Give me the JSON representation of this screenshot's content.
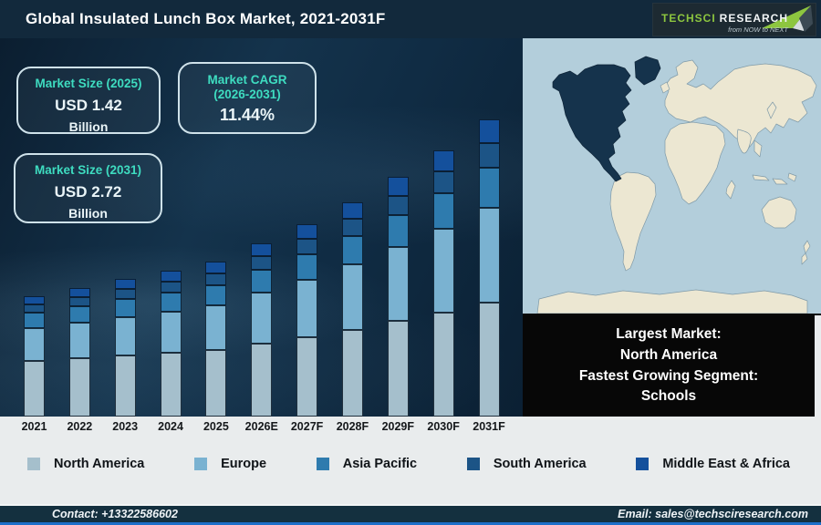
{
  "theme": {
    "accent_teal": "#3edcc0",
    "header_bg": "#12293c",
    "footer_bg": "#14303f",
    "footer_bottom_line": "#1d6fc9"
  },
  "header": {
    "title": "Global Insulated Lunch Box Market, 2021-2031F",
    "logo": {
      "brand_primary": "TechSci",
      "brand_secondary": "Research",
      "tagline": "from NOW to NEXT",
      "arrow_green": "#8dc63f"
    }
  },
  "stats": {
    "market_size_2025": {
      "label": "Market Size (2025)",
      "value": "USD 1.42",
      "unit": "Billion"
    },
    "market_cagr": {
      "label_line1": "Market CAGR",
      "label_line2": "(2026-2031)",
      "value": "11.44%"
    },
    "market_size_2031": {
      "label": "Market Size (2031)",
      "value": "USD 2.72",
      "unit": "Billion"
    }
  },
  "chart_data": {
    "type": "bar",
    "stacked": true,
    "title": "Global Insulated Lunch Box Market, 2021-2031F",
    "unit": "USD Billion",
    "legend_position": "bottom",
    "axes_visible": false,
    "categories": [
      "2021",
      "2022",
      "2023",
      "2024",
      "2025",
      "2026E",
      "2027F",
      "2028F",
      "2029F",
      "2030F",
      "2031F"
    ],
    "totals": [
      1.11,
      1.18,
      1.25,
      1.33,
      1.42,
      1.58,
      1.76,
      1.96,
      2.19,
      2.44,
      2.72
    ],
    "series": [
      {
        "name": "North America",
        "color": "#a5bfcc",
        "values": [
          0.511,
          0.534,
          0.556,
          0.581,
          0.609,
          0.665,
          0.727,
          0.795,
          0.871,
          0.951,
          1.039
        ]
      },
      {
        "name": "Europe",
        "color": "#7ab2d1",
        "values": [
          0.3,
          0.325,
          0.35,
          0.379,
          0.412,
          0.466,
          0.528,
          0.598,
          0.679,
          0.769,
          0.87
        ]
      },
      {
        "name": "Asia Pacific",
        "color": "#2e7bae",
        "values": [
          0.144,
          0.154,
          0.164,
          0.174,
          0.187,
          0.209,
          0.233,
          0.26,
          0.292,
          0.326,
          0.364
        ]
      },
      {
        "name": "South America",
        "color": "#1c5486",
        "values": [
          0.078,
          0.084,
          0.091,
          0.099,
          0.107,
          0.122,
          0.138,
          0.156,
          0.178,
          0.202,
          0.228
        ]
      },
      {
        "name": "Middle East & Africa",
        "color": "#14509c",
        "values": [
          0.078,
          0.084,
          0.09,
          0.097,
          0.105,
          0.119,
          0.134,
          0.151,
          0.171,
          0.193,
          0.218
        ]
      }
    ]
  },
  "map": {
    "highlighted_region": "North America",
    "ocean_color": "#b3cedb",
    "land_color": "#ece7d2",
    "land_outline": "#7f9aa8",
    "highlight_color": "#15334c"
  },
  "callout": {
    "lines": [
      "Largest Market:",
      "North America",
      "Fastest Growing Segment:",
      "Schools"
    ]
  },
  "footer": {
    "contact": "Contact: +13322586602",
    "email": "Email: sales@techsciresearch.com"
  }
}
